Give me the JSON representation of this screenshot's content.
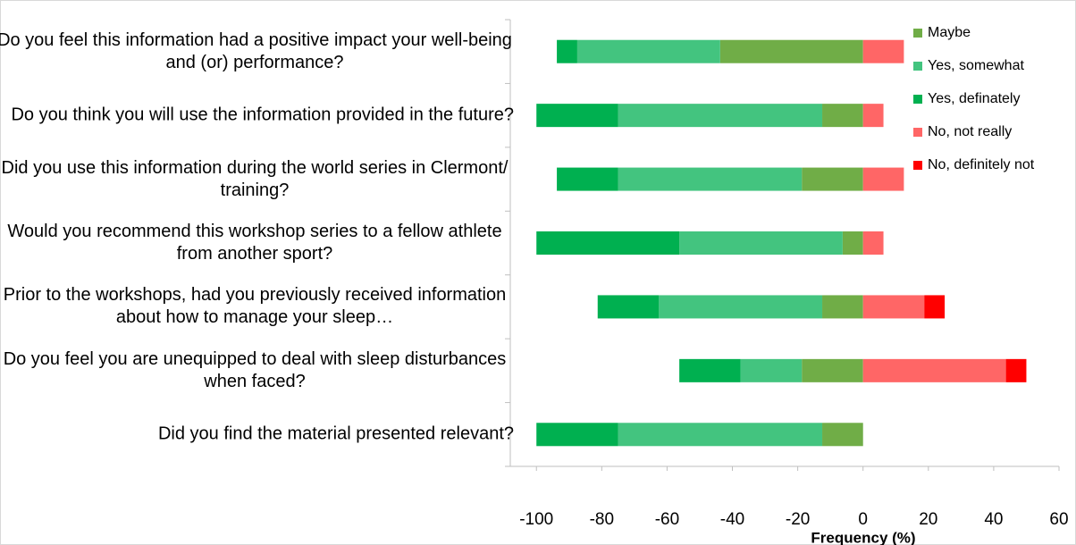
{
  "chart_data": {
    "type": "diverging_stacked_bar",
    "x_label": "Frequency (%)",
    "categories": [
      "Do you feel this information had a positive impact your well-being and (or) performance?",
      "Do you think you will use the information provided in the future?",
      "Did you use this information during the world series in Clermont/ training?",
      "Would you recommend this workshop series to a fellow athlete from another sport?",
      "Prior to the workshops, had you previously received information about how to manage your sleep…",
      "Do you feel you are unequipped to deal with sleep disturbances when faced?",
      "Did you find the material presented relevant?"
    ],
    "series": [
      {
        "name": "Maybe",
        "color": "#70ad47",
        "values": [
          -43.75,
          -12.5,
          -18.75,
          -6.25,
          -12.5,
          -18.75,
          -12.5
        ]
      },
      {
        "name": "Yes, somewhat",
        "color": "#43c47f",
        "values": [
          -43.75,
          -62.5,
          -56.25,
          -50,
          -50,
          -18.75,
          -62.5
        ]
      },
      {
        "name": "Yes, definately",
        "color": "#00b050",
        "values": [
          -6.25,
          -25,
          -18.75,
          -43.75,
          -18.75,
          -18.75,
          -25
        ]
      },
      {
        "name": "No, not really",
        "color": "#ff6666",
        "values": [
          12.5,
          6.25,
          12.5,
          6.25,
          18.75,
          43.75,
          0
        ]
      },
      {
        "name": "No, definitely not",
        "color": "#ff0000",
        "values": [
          0,
          0,
          0,
          0,
          6.25,
          6.25,
          0
        ]
      }
    ],
    "xlim": [
      -108,
      60
    ],
    "xticks": [
      -100,
      -80,
      -60,
      -40,
      -20,
      0,
      20,
      40,
      60
    ],
    "legend": "top-right"
  }
}
